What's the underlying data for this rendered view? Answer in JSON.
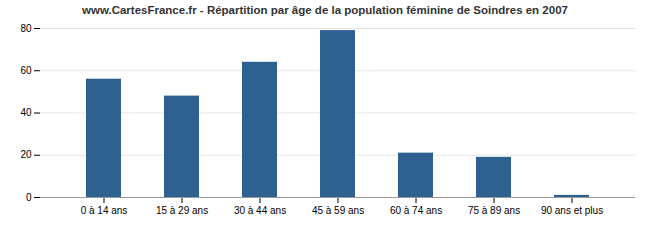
{
  "chart_data": {
    "type": "bar",
    "title": "www.CartesFrance.fr - Répartition par âge de la population féminine de Soindres en 2007",
    "categories": [
      "0 à 14 ans",
      "15 à 29 ans",
      "30 à 44 ans",
      "45 à 59 ans",
      "60 à 74 ans",
      "75 à 89 ans",
      "90 ans et plus"
    ],
    "values": [
      56,
      48,
      64,
      79,
      21,
      19,
      1
    ],
    "color": "#2e6090",
    "ylim": [
      0,
      80
    ],
    "yticks": [
      0,
      20,
      40,
      60,
      80
    ],
    "grid": true
  }
}
